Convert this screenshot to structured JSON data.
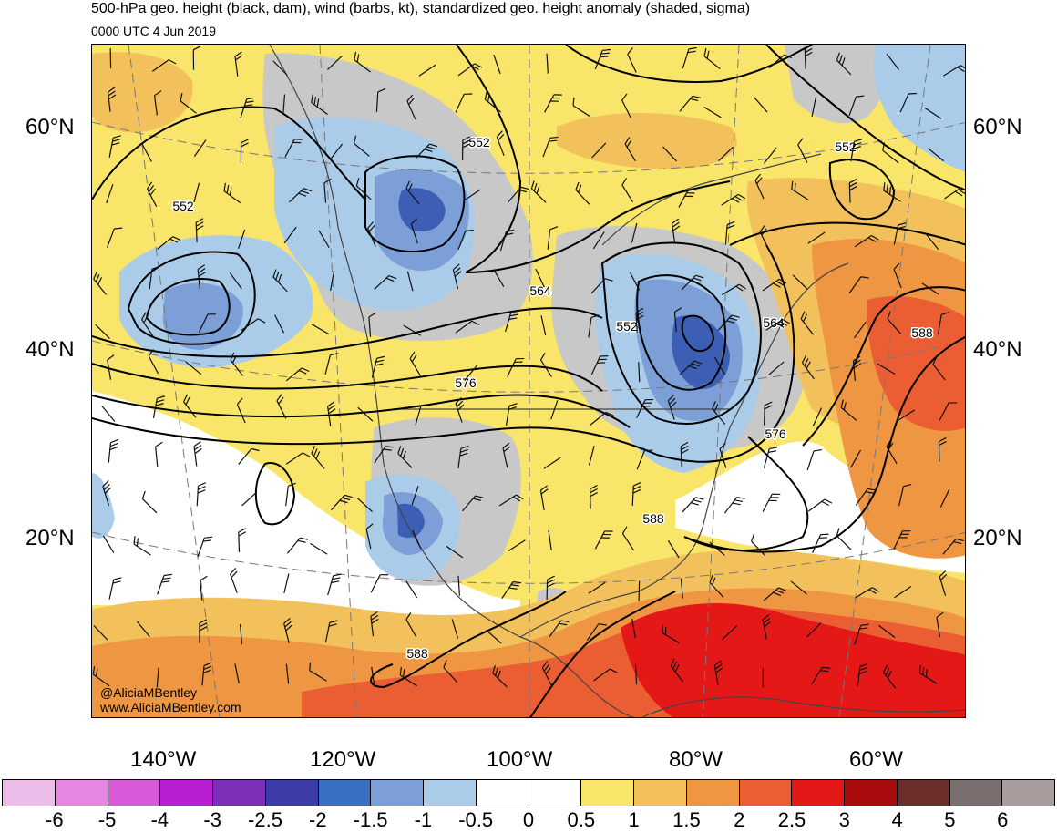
{
  "title": "500-hPa geo. height (black, dam), wind (barbs, kt), standardized geo. height anomaly (shaded, sigma)",
  "valid_time": "0000 UTC 4 Jun 2019",
  "latitude_labels": [
    "60°N",
    "40°N",
    "20°N"
  ],
  "longitude_labels": [
    "140°W",
    "120°W",
    "100°W",
    "80°W",
    "60°W"
  ],
  "contour_labels": [
    "552",
    "552",
    "552",
    "564",
    "564",
    "552",
    "576",
    "576",
    "588",
    "588",
    "588"
  ],
  "credits": {
    "handle": "@AliciaMBentley",
    "website": "www.AliciaMBentley.com"
  },
  "colorbar": {
    "colors": [
      "#ebbde8",
      "#e887e3",
      "#d95ad8",
      "#b81ed2",
      "#7c2fb8",
      "#3c3ca8",
      "#3a6ec0",
      "#7b9fd6",
      "#aacce8",
      "#ffffff",
      "#ffffff",
      "#f9e56a",
      "#f3c15c",
      "#ef9642",
      "#eb5e33",
      "#e51818",
      "#a80c0c",
      "#6b2e2b",
      "#7a6e6e",
      "#a89c9c"
    ],
    "ticks": [
      "-6",
      "-5",
      "-4",
      "-3",
      "-2.5",
      "-2",
      "-1.5",
      "-1",
      "-0.5",
      "0",
      "0.5",
      "1",
      "1.5",
      "2",
      "2.5",
      "3",
      "4",
      "5",
      "6"
    ]
  },
  "anomaly_colors": {
    "deep_blue": "#3c5eb4",
    "mid_blue": "#7b9fd6",
    "light_blue": "#aacce8",
    "gray_neutral": "#c8c8c8",
    "yellow": "#f9e56a",
    "light_orange": "#f3c15c",
    "orange": "#ef9642",
    "red_orange": "#eb5e33",
    "red": "#e51818"
  }
}
